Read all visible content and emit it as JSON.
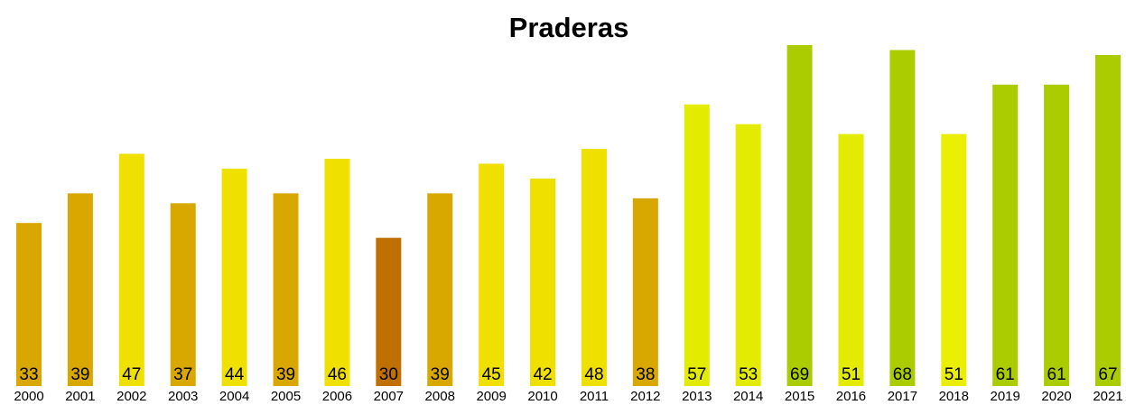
{
  "chart_data": {
    "type": "bar",
    "title": "Praderas",
    "categories": [
      "2000",
      "2001",
      "2002",
      "2003",
      "2004",
      "2005",
      "2006",
      "2007",
      "2008",
      "2009",
      "2010",
      "2011",
      "2012",
      "2013",
      "2014",
      "2015",
      "2016",
      "2017",
      "2018",
      "2019",
      "2020",
      "2021"
    ],
    "values": [
      33,
      39,
      47,
      37,
      44,
      39,
      46,
      30,
      39,
      45,
      42,
      48,
      38,
      57,
      53,
      69,
      51,
      68,
      51,
      61,
      61,
      67
    ],
    "colors": [
      "#d9a800",
      "#d9a800",
      "#f0e000",
      "#d9a800",
      "#f0e000",
      "#d9a800",
      "#f0e000",
      "#c07000",
      "#d9a800",
      "#f0e000",
      "#f0e000",
      "#f0e000",
      "#d9a800",
      "#e3ec00",
      "#e3ec00",
      "#aacc00",
      "#e3ec00",
      "#aacc00",
      "#eaee00",
      "#aacc00",
      "#aacc00",
      "#aacc00"
    ],
    "ylim": [
      0,
      69
    ]
  }
}
